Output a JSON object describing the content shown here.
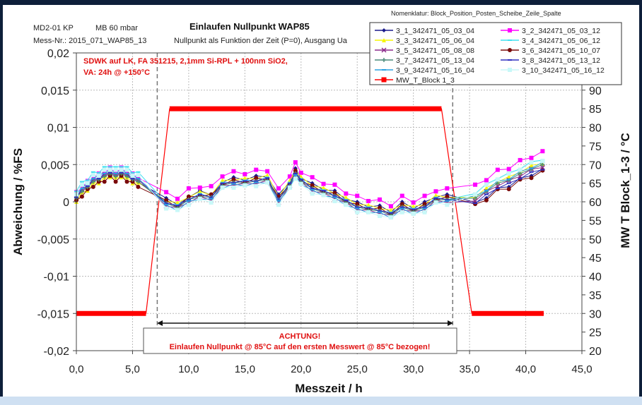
{
  "header": {
    "device": "MD2-01 KP",
    "range": "MB 60 mbar",
    "title": "Einlaufen Nullpunkt WAP85",
    "mess_nr": "Mess-Nr.: 2015_071_WAP85_13",
    "subtitle": "Nullpunkt als Funktion der Zeit (P=0), Ausgang Ua",
    "nomenclature": "Nomenklatur: Block_Position_Posten_Scheibe_Zeile_Spalte"
  },
  "annotation": {
    "line1": "SDWK auf LK, FA 351215, 2,1mm Si-RPL + 100nm SiO2,",
    "line2": "VA: 24h @ +150°C"
  },
  "warning": {
    "line1": "ACHTUNG!",
    "line2": "Einlaufen Nullpunkt @ 85°C auf den ersten Messwert @ 85°C bezogen!"
  },
  "chart_data": {
    "type": "line",
    "title": "Einlaufen Nullpunkt WAP85",
    "xlabel": "Messzeit / h",
    "ylabel": "Abweichung / %FS",
    "y2label": "MW T Block_1-3 / °C",
    "xlim": [
      0,
      45
    ],
    "ylim": [
      -0.02,
      0.02
    ],
    "y2lim": [
      20,
      100
    ],
    "grid": true,
    "legend_position": "top-right",
    "x_ticks": [
      "0,0",
      "5,0",
      "10,0",
      "15,0",
      "20,0",
      "25,0",
      "30,0",
      "35,0",
      "40,0",
      "45,0"
    ],
    "y_ticks": [
      "0,02",
      "0,015",
      "0,01",
      "0,005",
      "0",
      "-0,005",
      "-0,01",
      "-0,015",
      "-0,02"
    ],
    "y2_ticks": [
      "90",
      "85",
      "80",
      "75",
      "70",
      "65",
      "60",
      "55",
      "50",
      "45",
      "40",
      "35",
      "30",
      "25",
      "20"
    ],
    "dashed_markers_h": [
      7.2,
      33.5
    ],
    "y_value_factor": 0.001,
    "x": [
      0,
      0.5,
      1,
      1.5,
      2,
      2.5,
      3,
      3.5,
      4,
      4.5,
      5,
      5.5,
      8,
      9,
      10,
      11,
      12,
      13,
      14,
      15,
      16,
      17,
      18,
      19,
      19.5,
      20,
      21,
      22,
      23,
      24,
      25,
      26,
      27,
      28,
      29,
      30,
      31,
      32,
      33,
      35.5,
      36.5,
      37.5,
      38.5,
      39.5,
      40.5,
      41.5
    ],
    "series": [
      {
        "name": "3_1_342471_05_03_04",
        "color": "#1a1a8c",
        "marker": "diamond",
        "values_milli": [
          0.7,
          1.3,
          2.2,
          2.6,
          3.2,
          3.3,
          4.0,
          3.3,
          4.0,
          3.3,
          3.2,
          2.6,
          0.5,
          -0.4,
          0.6,
          1.5,
          0.9,
          2.6,
          3.3,
          2.9,
          3.5,
          3.3,
          1.0,
          2.6,
          4.5,
          3.1,
          2.5,
          1.6,
          1.5,
          0.3,
          0.0,
          -0.7,
          -0.5,
          -1.4,
          0.0,
          -0.9,
          0.0,
          0.6,
          1.0,
          -0.1,
          0.5,
          1.9,
          2.0,
          3.2,
          3.5,
          4.4
        ]
      },
      {
        "name": "3_2_342471_05_03_12",
        "color": "#ff00ff",
        "marker": "square",
        "values_milli": [
          1.3,
          1.9,
          2.8,
          3.2,
          3.8,
          3.9,
          4.6,
          3.9,
          4.6,
          3.9,
          3.8,
          3.2,
          1.3,
          0.4,
          1.8,
          1.9,
          2.1,
          3.4,
          4.1,
          3.7,
          4.3,
          4.1,
          1.8,
          3.4,
          5.3,
          3.9,
          3.3,
          2.4,
          2.3,
          1.1,
          0.8,
          0.1,
          0.3,
          -0.6,
          0.8,
          -0.1,
          0.8,
          1.4,
          1.8,
          2.3,
          2.9,
          4.3,
          4.4,
          5.6,
          5.9,
          6.8
        ]
      },
      {
        "name": "3_3_342471_05_06_04",
        "color": "#f5f500",
        "marker": "triangle",
        "values_milli": [
          0.0,
          1.3,
          1.5,
          2.6,
          2.5,
          3.3,
          3.3,
          3.3,
          3.3,
          3.3,
          2.5,
          2.6,
          0.1,
          -0.1,
          0.6,
          1.4,
          0.9,
          2.9,
          2.9,
          3.2,
          3.1,
          3.6,
          0.6,
          2.9,
          4.1,
          3.4,
          2.1,
          1.9,
          1.1,
          0.6,
          -0.4,
          -0.4,
          -0.9,
          -1.1,
          -0.4,
          -0.6,
          -0.4,
          0.9,
          0.6,
          0.6,
          1.9,
          2.6,
          3.4,
          3.9,
          4.9,
          5.1
        ]
      },
      {
        "name": "3_4_342471_05_06_12",
        "color": "#40e0f0",
        "marker": "cross",
        "values_milli": [
          1.4,
          2.7,
          2.9,
          4.0,
          3.9,
          4.7,
          4.7,
          4.7,
          4.7,
          4.7,
          3.9,
          4.0,
          -0.2,
          -0.4,
          0.3,
          1.1,
          0.6,
          2.6,
          2.6,
          2.9,
          2.8,
          3.3,
          0.3,
          2.6,
          3.8,
          3.1,
          1.8,
          1.6,
          0.8,
          0.3,
          -0.7,
          -0.7,
          -1.2,
          -1.4,
          -0.7,
          -0.9,
          -0.7,
          0.6,
          0.3,
          1.1,
          2.4,
          3.1,
          3.9,
          4.4,
          5.4,
          5.6
        ]
      },
      {
        "name": "3_5_342471_05_08_08",
        "color": "#8b2a8b",
        "marker": "x",
        "values_milli": [
          0.4,
          1.7,
          1.9,
          3.0,
          2.9,
          3.7,
          3.7,
          3.7,
          3.7,
          3.7,
          2.9,
          3.0,
          -0.6,
          -0.8,
          -0.1,
          0.7,
          0.2,
          2.2,
          2.2,
          2.5,
          2.4,
          2.9,
          -0.1,
          2.2,
          3.4,
          2.7,
          1.4,
          1.2,
          0.4,
          -0.1,
          -1.1,
          -1.1,
          -1.6,
          -1.8,
          -1.1,
          -1.3,
          -1.1,
          0.2,
          -0.1,
          0.1,
          1.4,
          2.1,
          2.9,
          3.4,
          4.4,
          4.6
        ]
      },
      {
        "name": "3_6_342471_05_10_07",
        "color": "#7a0a0a",
        "marker": "circle",
        "values_milli": [
          0.2,
          0.7,
          1.7,
          2.0,
          2.7,
          2.7,
          3.5,
          2.7,
          3.5,
          2.7,
          2.7,
          2.0,
          0.2,
          -0.8,
          0.7,
          0.7,
          1.0,
          2.2,
          3.0,
          2.5,
          3.2,
          2.9,
          0.7,
          2.2,
          4.2,
          2.7,
          2.2,
          1.2,
          1.2,
          -0.1,
          -0.3,
          -1.1,
          -0.8,
          -1.8,
          -0.3,
          -1.3,
          -0.3,
          0.2,
          0.7,
          -0.3,
          0.2,
          1.7,
          1.7,
          3.0,
          3.2,
          4.2
        ]
      },
      {
        "name": "3_7_342471_05_13_04",
        "color": "#4a8a7a",
        "marker": "plus",
        "values_milli": [
          0.5,
          1.4,
          2.0,
          2.7,
          3.0,
          3.4,
          3.8,
          3.4,
          3.8,
          3.4,
          3.0,
          2.7,
          -0.2,
          -0.8,
          0.3,
          0.7,
          0.6,
          2.2,
          2.6,
          2.5,
          2.8,
          2.9,
          0.3,
          2.2,
          3.8,
          2.7,
          1.8,
          1.2,
          0.8,
          -0.1,
          -0.7,
          -1.1,
          -1.2,
          -1.8,
          -0.7,
          -1.3,
          -0.7,
          0.2,
          0.3,
          0.5,
          1.4,
          2.5,
          2.9,
          3.8,
          4.4,
          5.0
        ]
      },
      {
        "name": "3_8_342471_05_13_12",
        "color": "#3030c0",
        "marker": "dash",
        "values_milli": [
          0.6,
          1.8,
          2.1,
          3.1,
          3.1,
          3.8,
          3.9,
          3.8,
          3.9,
          3.8,
          3.1,
          3.1,
          -0.2,
          -0.5,
          0.3,
          1.0,
          0.6,
          2.5,
          2.6,
          2.8,
          2.8,
          3.2,
          0.3,
          2.5,
          3.8,
          3.0,
          1.8,
          1.5,
          0.8,
          0.2,
          -0.7,
          -0.8,
          -1.2,
          -1.5,
          -0.7,
          -1.0,
          -0.7,
          0.5,
          0.3,
          -0.2,
          1.0,
          1.8,
          2.5,
          3.1,
          4.0,
          4.3
        ]
      },
      {
        "name": "3_9_342471_05_16_04",
        "color": "#2aa0e0",
        "marker": "dash",
        "values_milli": [
          1.1,
          1.8,
          2.6,
          3.1,
          3.6,
          3.8,
          4.4,
          3.8,
          4.4,
          3.8,
          3.6,
          3.1,
          -0.4,
          -1.2,
          0.1,
          0.3,
          0.4,
          1.8,
          2.4,
          2.1,
          2.6,
          2.5,
          0.1,
          1.8,
          3.6,
          2.3,
          1.6,
          0.8,
          0.6,
          -0.5,
          -0.9,
          -1.5,
          -1.4,
          -2.2,
          -0.9,
          -1.7,
          -0.9,
          -0.2,
          0.1,
          0.8,
          1.5,
          2.8,
          3.0,
          4.1,
          4.5,
          5.3
        ]
      },
      {
        "name": "3_10_342471_05_16_12",
        "color": "#c8f8f8",
        "marker": "square",
        "values_milli": [
          1.0,
          2.3,
          2.5,
          3.6,
          3.5,
          4.3,
          4.3,
          4.3,
          4.3,
          4.3,
          3.5,
          3.6,
          -0.9,
          -1.1,
          -0.4,
          0.4,
          -0.1,
          1.9,
          1.9,
          2.2,
          2.1,
          2.6,
          -0.4,
          1.9,
          3.1,
          2.4,
          1.1,
          0.9,
          0.1,
          -0.4,
          -1.4,
          -1.4,
          -1.9,
          -2.1,
          -1.4,
          -1.6,
          -1.4,
          -0.1,
          -0.4,
          1.0,
          2.3,
          3.0,
          3.8,
          4.3,
          5.3,
          5.5
        ]
      }
    ],
    "temperature_series": {
      "name": "MW_T_Block 1-3",
      "legend_label": "MW_T_Block 1_3",
      "color": "#ff0000",
      "axis": "right",
      "x": [
        0,
        6.2,
        8.3,
        32.5,
        35.2,
        41.6
      ],
      "values": [
        30,
        30,
        85,
        85,
        30,
        30
      ]
    }
  }
}
